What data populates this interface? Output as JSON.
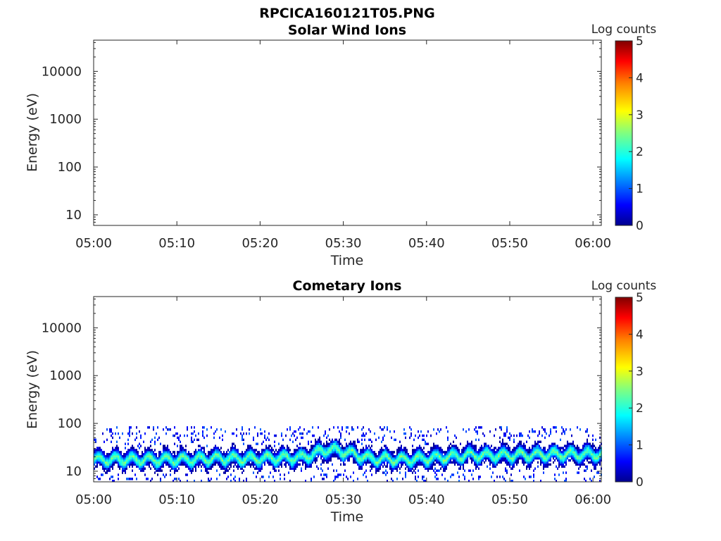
{
  "figure_title": "RPCICA160121T05.PNG",
  "colors": {
    "jet": [
      "#00008F",
      "#0000FF",
      "#0080FF",
      "#00FFFF",
      "#80FF80",
      "#FFFF00",
      "#FF8000",
      "#FF0000",
      "#800000"
    ]
  },
  "chart_data": [
    {
      "type": "heatmap",
      "title": "Solar Wind Ions",
      "xlabel": "Time",
      "ylabel": "Energy (eV)",
      "x_ticks": [
        "05:00",
        "05:10",
        "05:20",
        "05:30",
        "05:40",
        "05:50",
        "06:00"
      ],
      "x_range_minutes": [
        0,
        61
      ],
      "y_scale": "log",
      "y_ticks": [
        "10",
        "100",
        "1000",
        "10000"
      ],
      "y_range": [
        6,
        45000
      ],
      "colorbar": {
        "label": "Log counts",
        "ticks": [
          "0",
          "1",
          "2",
          "3",
          "4",
          "5"
        ],
        "range": [
          0,
          5
        ]
      },
      "data_present": false
    },
    {
      "type": "heatmap",
      "title": "Cometary Ions",
      "xlabel": "Time",
      "ylabel": "Energy (eV)",
      "x_ticks": [
        "05:00",
        "05:10",
        "05:20",
        "05:30",
        "05:40",
        "05:50",
        "06:00"
      ],
      "x_range_minutes": [
        0,
        61
      ],
      "y_scale": "log",
      "y_ticks": [
        "10",
        "100",
        "1000",
        "10000"
      ],
      "y_range": [
        6,
        45000
      ],
      "colorbar": {
        "label": "Log counts",
        "ticks": [
          "0",
          "1",
          "2",
          "3",
          "4",
          "5"
        ],
        "range": [
          0,
          5
        ]
      },
      "data_present": true,
      "band": {
        "center_energy_ev": [
          [
            0,
            17
          ],
          [
            5,
            17
          ],
          [
            10,
            17
          ],
          [
            15,
            18
          ],
          [
            20,
            18
          ],
          [
            25,
            19
          ],
          [
            28,
            28
          ],
          [
            30,
            25
          ],
          [
            33,
            18
          ],
          [
            37,
            17
          ],
          [
            40,
            18
          ],
          [
            45,
            21
          ],
          [
            50,
            21
          ],
          [
            55,
            22
          ],
          [
            61,
            22
          ]
        ],
        "peak_log_counts": 2.8,
        "sparse_upper_extent_ev": 80,
        "lower_extent_ev": 6
      }
    }
  ]
}
